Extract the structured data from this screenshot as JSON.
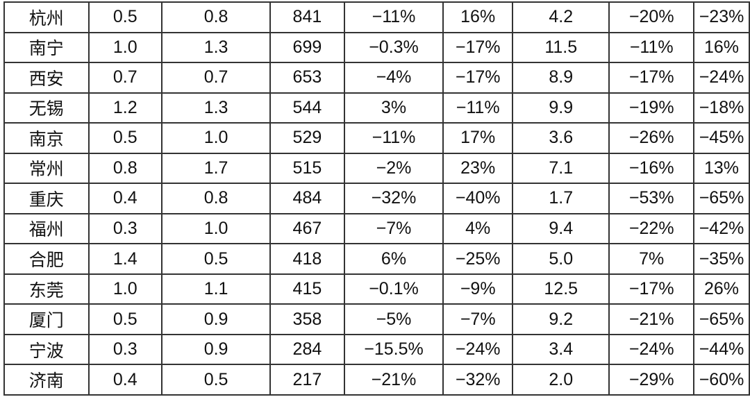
{
  "styles": {
    "background_color": "#ffffff",
    "border_color": "#333333",
    "text_color": "#111111"
  },
  "table": {
    "description": "Data table of Chinese cities with numeric and percentage values; no header row visible in screenshot",
    "rows": [
      {
        "cells": [
          "杭州",
          "0.5",
          "0.8",
          "841",
          "−11%",
          "16%",
          "4.2",
          "−20%",
          "−23%"
        ]
      },
      {
        "cells": [
          "南宁",
          "1.0",
          "1.3",
          "699",
          "−0.3%",
          "−17%",
          "11.5",
          "−11%",
          "16%"
        ]
      },
      {
        "cells": [
          "西安",
          "0.7",
          "0.7",
          "653",
          "−4%",
          "−17%",
          "8.9",
          "−17%",
          "−24%"
        ]
      },
      {
        "cells": [
          "无锡",
          "1.2",
          "1.3",
          "544",
          "3%",
          "−11%",
          "9.9",
          "−19%",
          "−18%"
        ]
      },
      {
        "cells": [
          "南京",
          "0.5",
          "1.0",
          "529",
          "−11%",
          "17%",
          "3.6",
          "−26%",
          "−45%"
        ]
      },
      {
        "cells": [
          "常州",
          "0.8",
          "1.7",
          "515",
          "−2%",
          "23%",
          "7.1",
          "−16%",
          "13%"
        ]
      },
      {
        "cells": [
          "重庆",
          "0.4",
          "0.8",
          "484",
          "−32%",
          "−40%",
          "1.7",
          "−53%",
          "−65%"
        ]
      },
      {
        "cells": [
          "福州",
          "0.3",
          "1.0",
          "467",
          "−7%",
          "4%",
          "9.4",
          "−22%",
          "−42%"
        ]
      },
      {
        "cells": [
          "合肥",
          "1.4",
          "0.5",
          "418",
          "6%",
          "−25%",
          "5.0",
          "7%",
          "−35%"
        ]
      },
      {
        "cells": [
          "东莞",
          "1.0",
          "1.1",
          "415",
          "−0.1%",
          "−9%",
          "12.5",
          "−17%",
          "26%"
        ]
      },
      {
        "cells": [
          "厦门",
          "0.5",
          "0.9",
          "358",
          "−5%",
          "−7%",
          "9.2",
          "−21%",
          "−65%"
        ]
      },
      {
        "cells": [
          "宁波",
          "0.3",
          "0.9",
          "284",
          "−15.5%",
          "−24%",
          "3.4",
          "−24%",
          "−44%"
        ]
      },
      {
        "cells": [
          "济南",
          "0.4",
          "0.5",
          "217",
          "−21%",
          "−32%",
          "2.0",
          "−29%",
          "−60%"
        ]
      }
    ]
  }
}
